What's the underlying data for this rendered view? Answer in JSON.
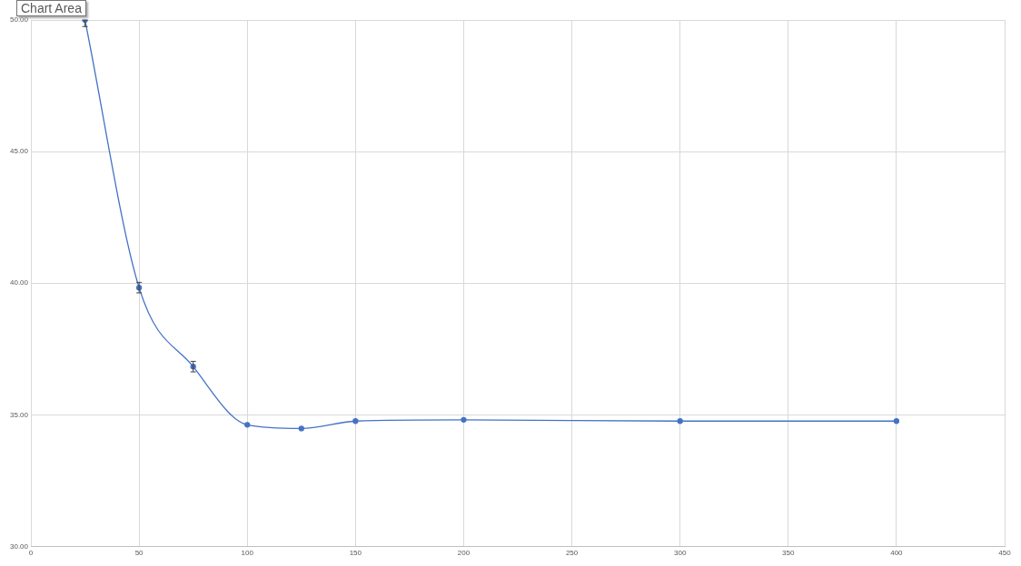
{
  "chart_data": {
    "type": "line",
    "x": [
      25,
      50,
      75,
      100,
      125,
      150,
      200,
      300,
      400
    ],
    "series": [
      {
        "color": "#4472c4",
        "values": [
          50,
          39.83,
          36.83,
          34.62,
          34.48,
          34.76,
          34.81,
          34.76,
          34.76
        ],
        "errors": [
          [
            49.75,
            50
          ],
          0.2,
          0.2,
          null,
          null,
          null,
          null,
          null,
          null
        ]
      }
    ],
    "xlim": [
      0,
      450
    ],
    "xticks": [
      0,
      50,
      100,
      150,
      200,
      250,
      300,
      350,
      400,
      450
    ],
    "ylim": [
      30,
      50
    ],
    "yticks": [
      {
        "value": 30,
        "label": "30.00"
      },
      {
        "value": 35,
        "label": "35.00"
      },
      {
        "value": 40,
        "label": "40.00"
      },
      {
        "value": 45,
        "label": "45.00"
      },
      {
        "value": 50,
        "label": "50.00"
      }
    ],
    "grid": true,
    "marker": "circle",
    "line_style": "solid",
    "annotations": [
      "Chart Area"
    ]
  }
}
